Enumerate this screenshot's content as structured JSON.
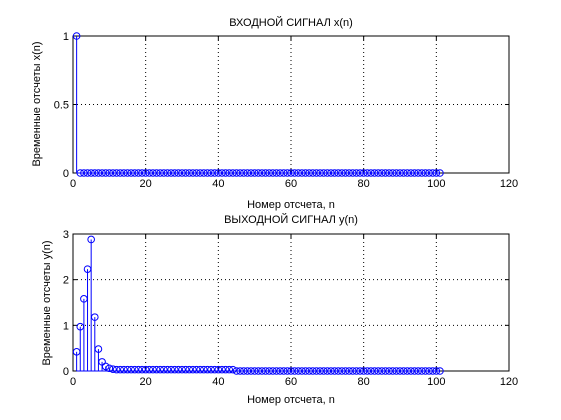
{
  "chart_data": [
    {
      "type": "stem",
      "title": "ВХОДНОЙ СИГНАЛ x(n)",
      "xlabel": "Номер отсчета, n",
      "ylabel": "Временные отсчеты x(n)",
      "xlim": [
        0,
        120
      ],
      "ylim": [
        0,
        1
      ],
      "xticks": [
        0,
        20,
        40,
        60,
        80,
        100,
        120
      ],
      "yticks": [
        0,
        0.5,
        1
      ],
      "grid": true,
      "series": [
        {
          "x": [
            1,
            2,
            3,
            4,
            5,
            6,
            7,
            8,
            9,
            10,
            11,
            12,
            13,
            14,
            15,
            16,
            17,
            18,
            19,
            20,
            21,
            22,
            23,
            24,
            25,
            26,
            27,
            28,
            29,
            30,
            31,
            32,
            33,
            34,
            35,
            36,
            37,
            38,
            39,
            40,
            41,
            42,
            43,
            44,
            45,
            46,
            47,
            48,
            49,
            50,
            51,
            52,
            53,
            54,
            55,
            56,
            57,
            58,
            59,
            60,
            61,
            62,
            63,
            64,
            65,
            66,
            67,
            68,
            69,
            70,
            71,
            72,
            73,
            74,
            75,
            76,
            77,
            78,
            79,
            80,
            81,
            82,
            83,
            84,
            85,
            86,
            87,
            88,
            89,
            90,
            91,
            92,
            93,
            94,
            95,
            96,
            97,
            98,
            99,
            100,
            101
          ],
          "y": [
            1,
            0,
            0,
            0,
            0,
            0,
            0,
            0,
            0,
            0,
            0,
            0,
            0,
            0,
            0,
            0,
            0,
            0,
            0,
            0,
            0,
            0,
            0,
            0,
            0,
            0,
            0,
            0,
            0,
            0,
            0,
            0,
            0,
            0,
            0,
            0,
            0,
            0,
            0,
            0,
            0,
            0,
            0,
            0,
            0,
            0,
            0,
            0,
            0,
            0,
            0,
            0,
            0,
            0,
            0,
            0,
            0,
            0,
            0,
            0,
            0,
            0,
            0,
            0,
            0,
            0,
            0,
            0,
            0,
            0,
            0,
            0,
            0,
            0,
            0,
            0,
            0,
            0,
            0,
            0,
            0,
            0,
            0,
            0,
            0,
            0,
            0,
            0,
            0,
            0,
            0,
            0,
            0,
            0,
            0,
            0,
            0,
            0,
            0,
            0,
            0
          ]
        }
      ]
    },
    {
      "type": "stem",
      "title": "ВЫХОДНОЙ СИГНАЛ y(n)",
      "xlabel": "Номер отсчета, n",
      "ylabel": "Временные отсчеты y(n)",
      "xlim": [
        0,
        120
      ],
      "ylim": [
        0,
        3
      ],
      "xticks": [
        0,
        20,
        40,
        60,
        80,
        100,
        120
      ],
      "yticks": [
        0,
        1,
        2,
        3
      ],
      "grid": true,
      "series": [
        {
          "x": [
            1,
            2,
            3,
            4,
            5,
            6,
            7,
            8,
            9,
            10,
            11,
            12,
            13,
            14,
            15,
            16,
            17,
            18,
            19,
            20,
            21,
            22,
            23,
            24,
            25,
            26,
            27,
            28,
            29,
            30,
            31,
            32,
            33,
            34,
            35,
            36,
            37,
            38,
            39,
            40,
            41,
            42,
            43,
            44,
            45,
            46,
            47,
            48,
            49,
            50,
            51,
            52,
            53,
            54,
            55,
            56,
            57,
            58,
            59,
            60,
            61,
            62,
            63,
            64,
            65,
            66,
            67,
            68,
            69,
            70,
            71,
            72,
            73,
            74,
            75,
            76,
            77,
            78,
            79,
            80,
            81,
            82,
            83,
            84,
            85,
            86,
            87,
            88,
            89,
            90,
            91,
            92,
            93,
            94,
            95,
            96,
            97,
            98,
            99,
            100,
            101
          ],
          "y": [
            0.42,
            0.97,
            1.58,
            2.23,
            2.88,
            1.18,
            0.48,
            0.2,
            0.1,
            0.06,
            0.04,
            0.03,
            0.03,
            0.03,
            0.03,
            0.03,
            0.03,
            0.03,
            0.03,
            0.03,
            0.03,
            0.03,
            0.03,
            0.03,
            0.03,
            0.03,
            0.03,
            0.03,
            0.03,
            0.03,
            0.03,
            0.03,
            0.03,
            0.03,
            0.03,
            0.03,
            0.03,
            0.03,
            0.03,
            0.03,
            0.03,
            0.03,
            0.03,
            0.03,
            0,
            0,
            0,
            0,
            0,
            0,
            0,
            0,
            0,
            0,
            0,
            0,
            0,
            0,
            0,
            0,
            0,
            0,
            0,
            0,
            0,
            0,
            0,
            0,
            0,
            0,
            0,
            0,
            0,
            0,
            0,
            0,
            0,
            0,
            0,
            0,
            0,
            0,
            0,
            0,
            0,
            0,
            0,
            0,
            0,
            0,
            0,
            0,
            0,
            0,
            0,
            0,
            0,
            0,
            0,
            0,
            0
          ]
        }
      ]
    }
  ],
  "colors": {
    "stem": "#0000ff",
    "axis": "#000000",
    "grid": "#000000"
  }
}
